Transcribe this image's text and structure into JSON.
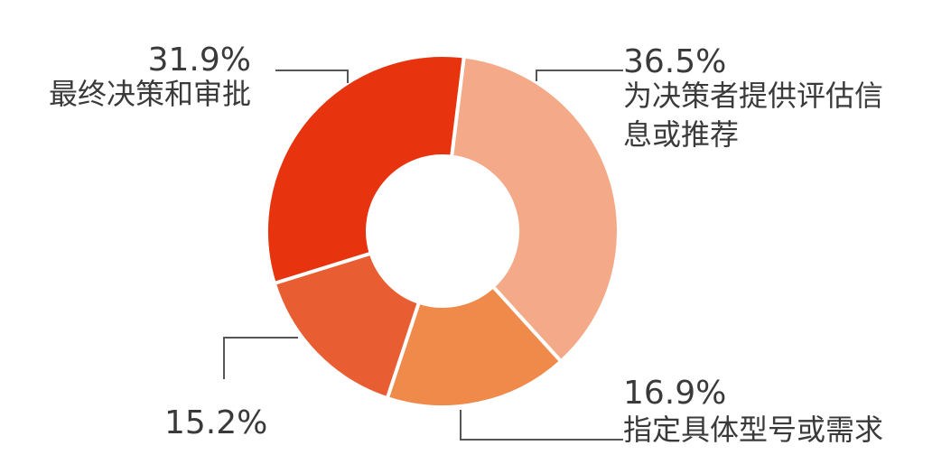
{
  "chart_data": {
    "type": "pie",
    "donut": true,
    "title": "",
    "slices": [
      {
        "value": 36.5,
        "label": "36.5%",
        "name_lines": [
          "为决策者提供评估信",
          "息或推荐"
        ],
        "color": "#F4AA88"
      },
      {
        "value": 16.9,
        "label": "16.9%",
        "name_lines": [
          "指定具体型号或需求"
        ],
        "color": "#EF8A4A"
      },
      {
        "value": 15.2,
        "label": "15.2%",
        "name_lines": [],
        "color": "#E95D33"
      },
      {
        "value": 31.9,
        "label": "31.9%",
        "name_lines": [
          "最终决策和审批"
        ],
        "color": "#E7340F"
      }
    ],
    "legend": "none",
    "grid": false
  }
}
